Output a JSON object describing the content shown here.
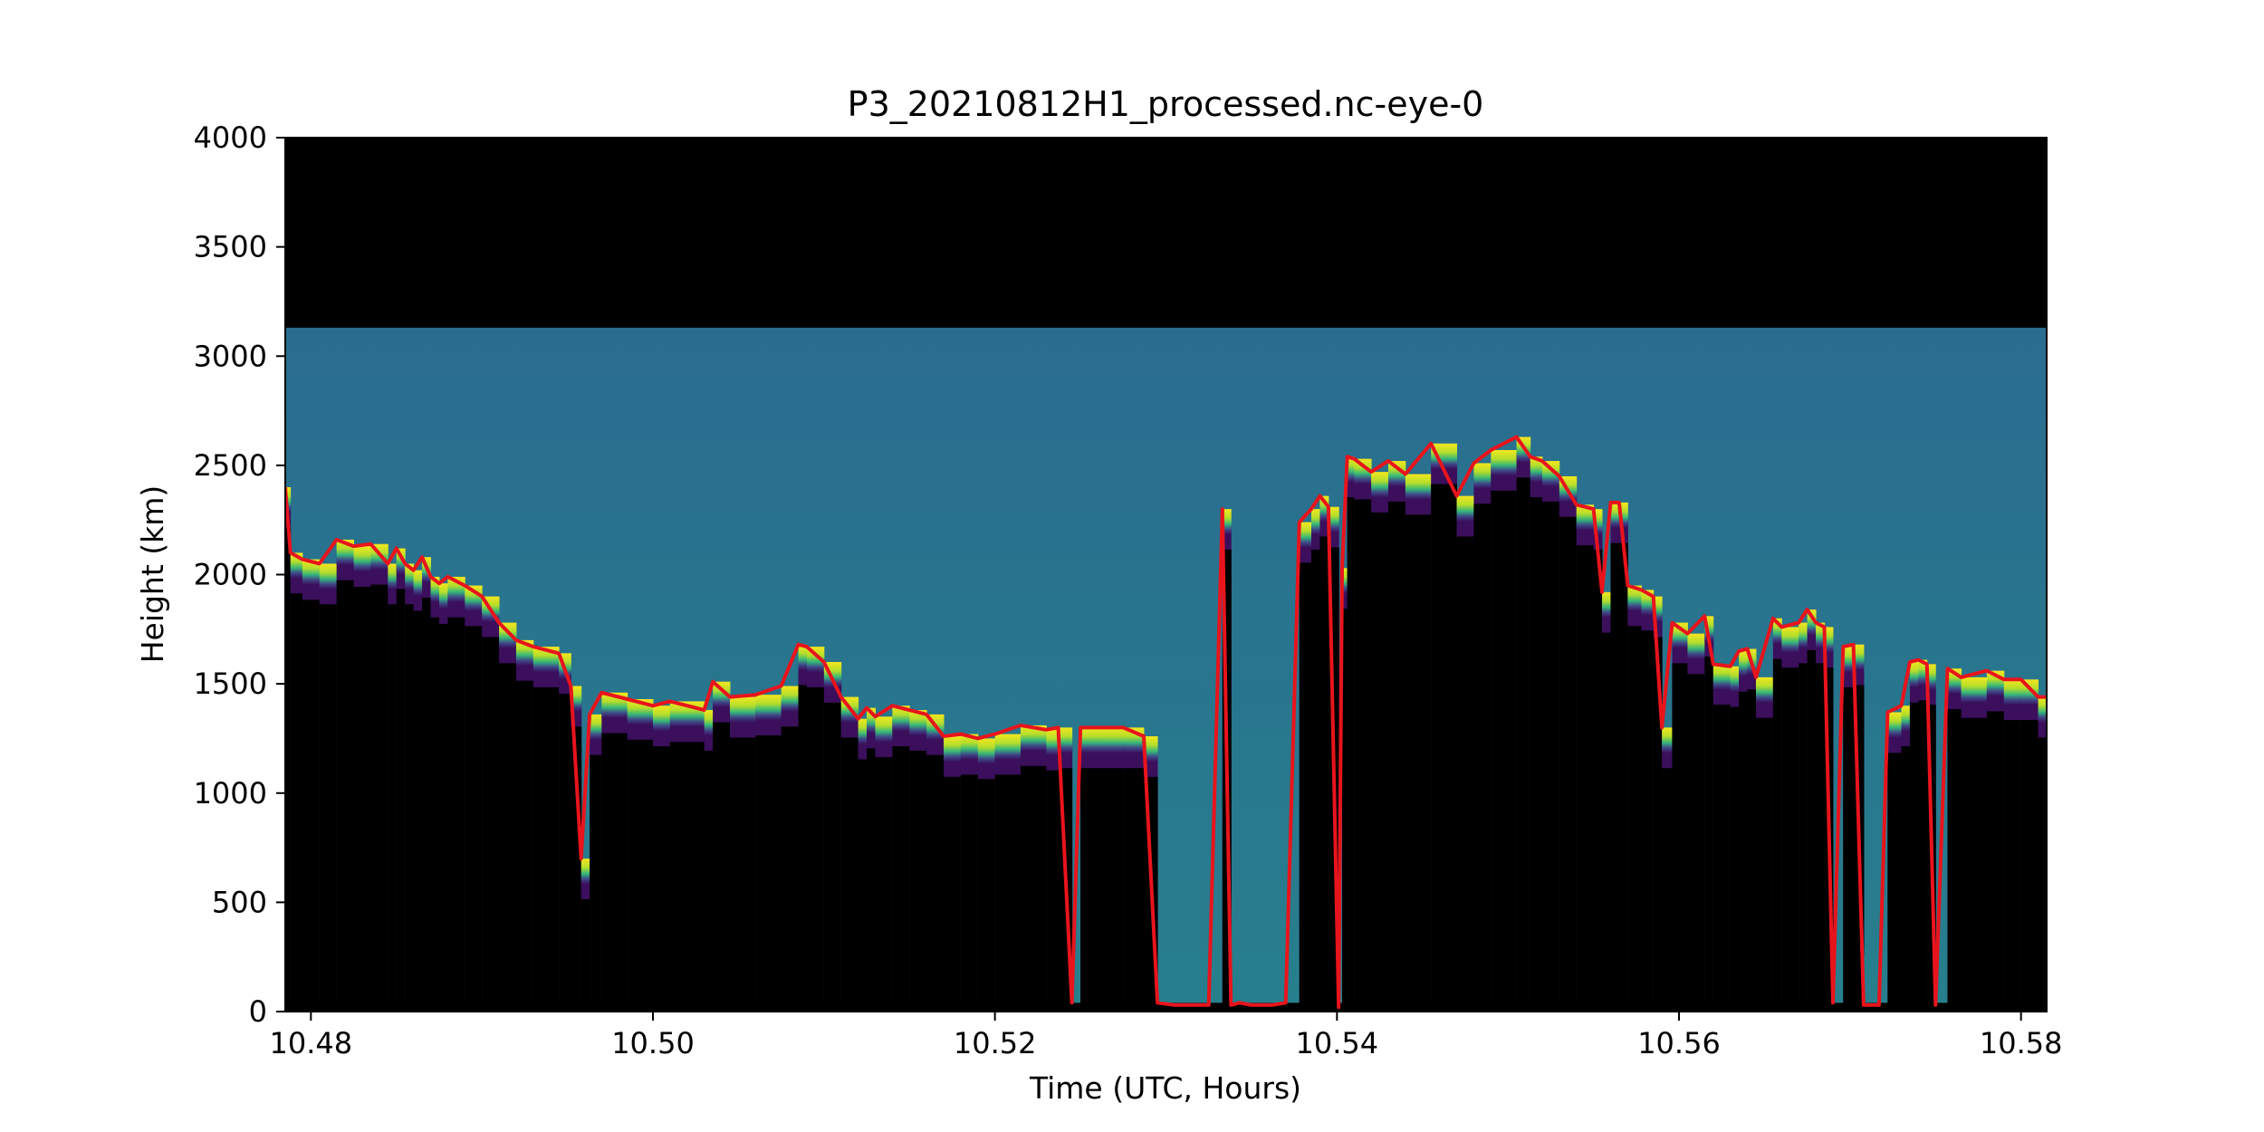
{
  "chart_data": {
    "type": "heatmap",
    "title": "P3_20210812H1_processed.nc-eye-0",
    "xlabel": "Time (UTC, Hours)",
    "ylabel": "Height (km)",
    "xlim": [
      10.4785,
      10.5815
    ],
    "ylim": [
      0,
      4000
    ],
    "x_ticks": [
      10.48,
      10.5,
      10.52,
      10.54,
      10.56,
      10.58
    ],
    "x_tick_labels": [
      "10.48",
      "10.50",
      "10.52",
      "10.54",
      "10.56",
      "10.58"
    ],
    "y_ticks": [
      0,
      500,
      1000,
      1500,
      2000,
      2500,
      3000,
      3500,
      4000
    ],
    "y_tick_labels": [
      "0",
      "500",
      "1000",
      "1500",
      "2000",
      "2500",
      "3000",
      "3500",
      "4000"
    ],
    "grid": false,
    "legend": "none",
    "heatmap": {
      "above_signal_top": 3130,
      "colormap": "viridis",
      "background_color": "#2d6b8e",
      "no_signal_color": "#000000",
      "top_band_color": "#000000",
      "strong_return_color": "#f4e61e",
      "weak_return_color": "#3b0f5c"
    },
    "series": [
      {
        "color": "#e8141c",
        "x": [
          10.4785,
          10.4788,
          10.4795,
          10.4805,
          10.4815,
          10.4825,
          10.4835,
          10.4845,
          10.485,
          10.4855,
          10.486,
          10.4865,
          10.487,
          10.4875,
          10.488,
          10.489,
          10.49,
          10.491,
          10.492,
          10.493,
          10.4945,
          10.4952,
          10.4958,
          10.4963,
          10.497,
          10.4985,
          10.5,
          10.501,
          10.503,
          10.5035,
          10.5045,
          10.506,
          10.5075,
          10.5085,
          10.509,
          10.51,
          10.511,
          10.512,
          10.5125,
          10.513,
          10.514,
          10.515,
          10.516,
          10.517,
          10.518,
          10.519,
          10.52,
          10.5215,
          10.523,
          10.5237,
          10.5245,
          10.525,
          10.5275,
          10.5287,
          10.5295,
          10.5305,
          10.5325,
          10.5333,
          10.5338,
          10.5343,
          10.535,
          10.5362,
          10.537,
          10.5378,
          10.5385,
          10.539,
          10.5395,
          10.5401,
          10.5403,
          10.5406,
          10.541,
          10.542,
          10.543,
          10.544,
          10.5455,
          10.547,
          10.548,
          10.549,
          10.5505,
          10.5513,
          10.552,
          10.553,
          10.554,
          10.555,
          10.5555,
          10.556,
          10.5565,
          10.557,
          10.5578,
          10.5585,
          10.559,
          10.5596,
          10.5605,
          10.5615,
          10.562,
          10.563,
          10.5635,
          10.564,
          10.5645,
          10.5655,
          10.566,
          10.567,
          10.5675,
          10.568,
          10.5685,
          10.569,
          10.5696,
          10.5702,
          10.5708,
          10.5713,
          10.5717,
          10.5722,
          10.573,
          10.5735,
          10.574,
          10.5745,
          10.575,
          10.5757,
          10.5765,
          10.578,
          10.579,
          10.58,
          10.581,
          10.5815
        ],
        "y": [
          2400,
          2100,
          2070,
          2050,
          2160,
          2130,
          2140,
          2050,
          2120,
          2050,
          2020,
          2080,
          1990,
          1960,
          1990,
          1950,
          1900,
          1780,
          1700,
          1670,
          1640,
          1490,
          700,
          1360,
          1460,
          1430,
          1400,
          1420,
          1380,
          1510,
          1440,
          1450,
          1490,
          1680,
          1670,
          1600,
          1440,
          1340,
          1390,
          1350,
          1400,
          1380,
          1360,
          1260,
          1270,
          1250,
          1270,
          1310,
          1290,
          1300,
          40,
          1300,
          1300,
          1260,
          40,
          30,
          30,
          2300,
          30,
          40,
          30,
          30,
          40,
          2240,
          2300,
          2360,
          2310,
          20,
          2030,
          2540,
          2530,
          2470,
          2520,
          2460,
          2600,
          2360,
          2510,
          2570,
          2630,
          2540,
          2520,
          2450,
          2320,
          2300,
          1920,
          2330,
          2330,
          1950,
          1930,
          1900,
          1300,
          1780,
          1730,
          1810,
          1590,
          1580,
          1650,
          1660,
          1530,
          1800,
          1760,
          1780,
          1840,
          1780,
          1760,
          40,
          1670,
          1680,
          30,
          30,
          30,
          1370,
          1400,
          1600,
          1610,
          1590,
          30,
          1570,
          1530,
          1560,
          1520,
          1520,
          1440,
          1440
        ]
      }
    ]
  }
}
